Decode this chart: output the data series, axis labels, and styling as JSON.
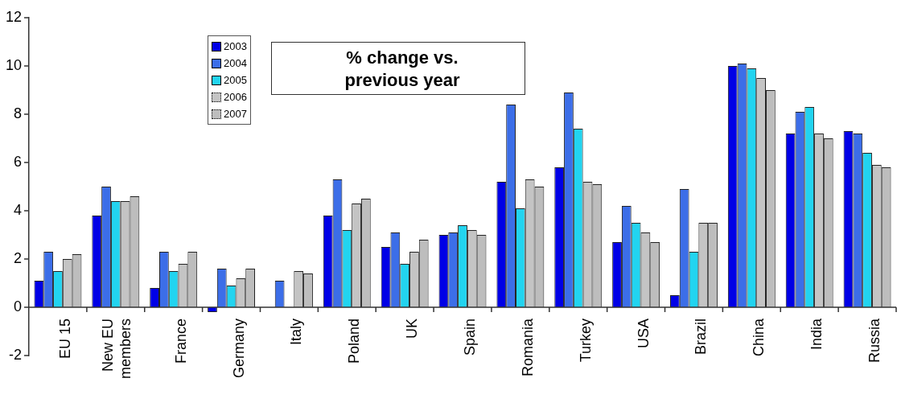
{
  "chart_data": {
    "type": "bar",
    "title": "% change vs. previous year",
    "categories": [
      "EU 15",
      "New EU members",
      "France",
      "Germany",
      "Italy",
      "Poland",
      "UK",
      "Spain",
      "Romania",
      "Turkey",
      "USA",
      "Brazil",
      "China",
      "India",
      "Russia"
    ],
    "series": [
      {
        "name": "2003",
        "color": "#0000e6",
        "values": [
          1.1,
          3.8,
          0.8,
          -0.2,
          0,
          3.8,
          2.5,
          3.0,
          5.2,
          5.8,
          2.7,
          0.5,
          10.0,
          7.2,
          7.3
        ]
      },
      {
        "name": "2004",
        "color": "#3c6ee8",
        "values": [
          2.3,
          5.0,
          2.3,
          1.6,
          1.1,
          5.3,
          3.1,
          3.1,
          8.4,
          8.9,
          4.2,
          4.9,
          10.1,
          8.1,
          7.2
        ]
      },
      {
        "name": "2005",
        "color": "#22d4f0",
        "values": [
          1.5,
          4.4,
          1.5,
          0.9,
          0,
          3.2,
          1.8,
          3.4,
          4.1,
          7.4,
          3.5,
          2.3,
          9.9,
          8.3,
          6.4
        ]
      },
      {
        "name": "2006",
        "color": "#c4c4c4",
        "values": [
          2.0,
          4.4,
          1.8,
          1.2,
          1.5,
          4.3,
          2.3,
          3.2,
          5.3,
          5.2,
          3.1,
          3.5,
          9.5,
          7.2,
          5.9
        ]
      },
      {
        "name": "2007",
        "color": "#bdbdbd",
        "values": [
          2.2,
          4.6,
          2.3,
          1.6,
          1.4,
          4.5,
          2.8,
          3.0,
          5.0,
          5.1,
          2.7,
          3.5,
          9.0,
          7.0,
          5.8
        ]
      }
    ],
    "ylim": [
      -2,
      12
    ],
    "yticks": [
      -2,
      0,
      2,
      4,
      6,
      8,
      10,
      12
    ],
    "grid": false,
    "legend": "top left"
  }
}
